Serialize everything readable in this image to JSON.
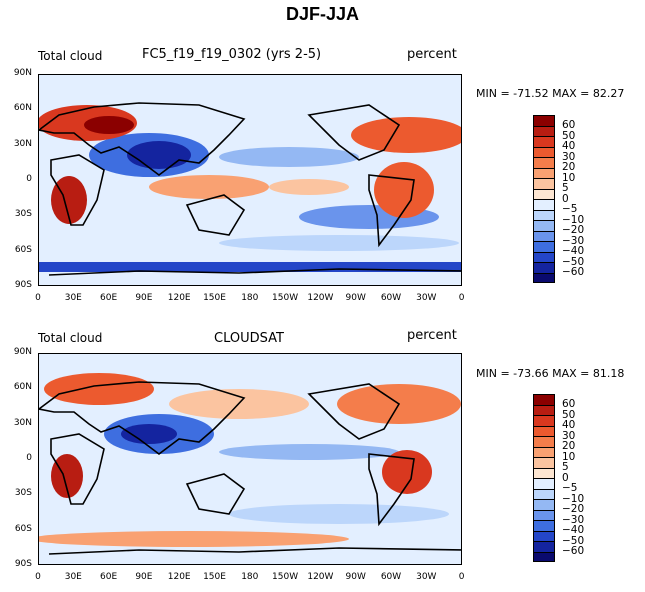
{
  "figure_title": "DJF-JJA",
  "panels": [
    {
      "left_label": "Total cloud",
      "center_label": "FC5_f19_f19_0302 (yrs 2-5)",
      "right_label": "percent",
      "stats": "MIN = -71.52 MAX =  82.27",
      "min": -71.52,
      "max": 82.27
    },
    {
      "left_label": "Total cloud",
      "center_label": "CLOUDSAT",
      "right_label": "percent",
      "stats": "MIN = -73.66 MAX =  81.18",
      "min": -73.66,
      "max": 81.18
    }
  ],
  "lat_ticks": [
    "90N",
    "60N",
    "30N",
    "0",
    "30S",
    "60S",
    "90S"
  ],
  "lon_ticks": [
    "0",
    "30E",
    "60E",
    "90E",
    "120E",
    "150E",
    "180",
    "150W",
    "120W",
    "90W",
    "60W",
    "30W",
    "0"
  ],
  "colorbar": {
    "labels": [
      "60",
      "50",
      "40",
      "30",
      "20",
      "10",
      "5",
      "0",
      "−5",
      "−10",
      "−20",
      "−30",
      "−40",
      "−50",
      "−60"
    ],
    "colors": [
      "#8b0000",
      "#b81d12",
      "#d9381f",
      "#ec5a2f",
      "#f47d4b",
      "#f9a172",
      "#fbc4a0",
      "#fde6d2",
      "#e3efff",
      "#bcd6fb",
      "#94b8f3",
      "#6a94ec",
      "#3e6ee0",
      "#2446c8",
      "#14249f",
      "#0a0a6e"
    ]
  }
}
